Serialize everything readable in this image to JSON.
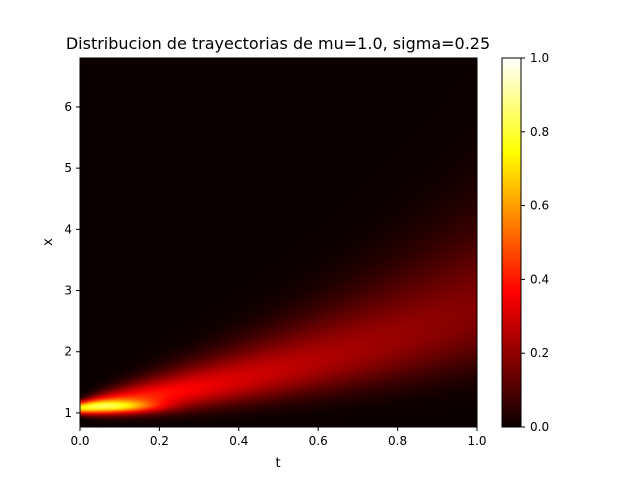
{
  "chart_data": {
    "type": "heatmap",
    "title": "Distribucion de trayectorias de mu=1.0, sigma=0.25",
    "xlabel": "t",
    "ylabel": "x",
    "xlim": [
      0.0,
      1.0
    ],
    "ylim": [
      0.77,
      6.8
    ],
    "x_ticks": [
      "0.0",
      "0.2",
      "0.4",
      "0.6",
      "0.8",
      "1.0"
    ],
    "y_ticks": [
      "1",
      "2",
      "3",
      "4",
      "5",
      "6"
    ],
    "colormap": "hot",
    "colorbar": {
      "range": [
        0.0,
        1.0
      ],
      "ticks": [
        "0.0",
        "0.2",
        "0.4",
        "0.6",
        "0.8",
        "1.0"
      ]
    },
    "model": {
      "mu": 1.0,
      "sigma": 0.25,
      "x0": 1.0
    },
    "hotspot": {
      "t": 0.09,
      "x": 1.1,
      "intensity": 0.75
    }
  }
}
